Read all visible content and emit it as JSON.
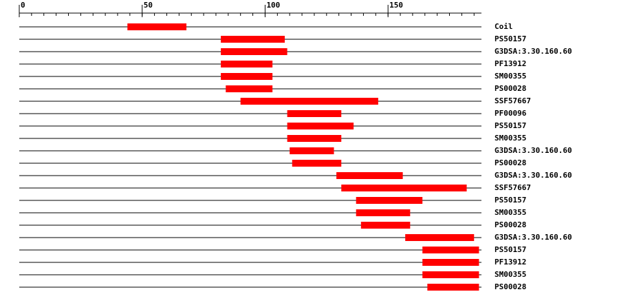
{
  "chart_data": {
    "type": "range",
    "categories": [
      "Coil",
      "PS50157",
      "G3DSA:3.30.160.60",
      "PF13912",
      "SM00355",
      "PS00028",
      "SSF57667",
      "PF00096",
      "PS50157",
      "SM00355",
      "G3DSA:3.30.160.60",
      "PS00028",
      "G3DSA:3.30.160.60",
      "SSF57667",
      "PS50157",
      "SM00355",
      "PS00028",
      "G3DSA:3.30.160.60",
      "PS50157",
      "PF13912",
      "SM00355",
      "PS00028"
    ],
    "starts": [
      44,
      82,
      82,
      82,
      82,
      84,
      90,
      109,
      109,
      109,
      110,
      111,
      129,
      131,
      137,
      137,
      139,
      157,
      164,
      164,
      164,
      166
    ],
    "ends": [
      68,
      108,
      109,
      103,
      103,
      103,
      146,
      131,
      136,
      131,
      128,
      131,
      156,
      182,
      164,
      159,
      159,
      185,
      187,
      187,
      187,
      187
    ],
    "color": "#ff0000",
    "xlim": [
      0,
      188
    ],
    "xticks": [
      0,
      50,
      100,
      150
    ],
    "minor_tick_step": 5
  }
}
